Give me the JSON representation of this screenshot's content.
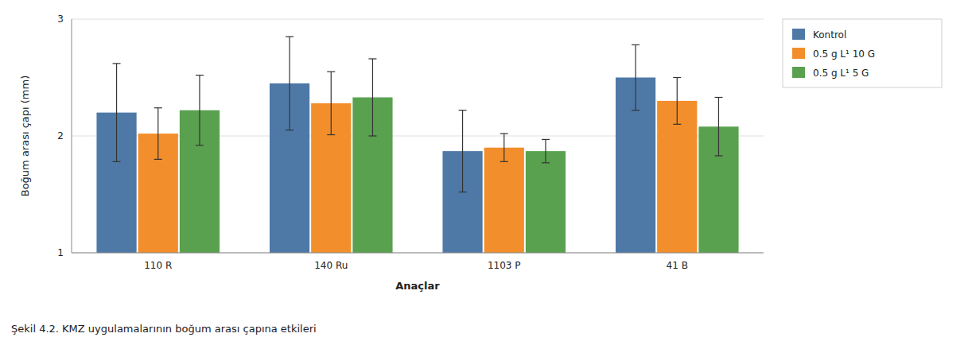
{
  "chart_data": {
    "type": "bar",
    "title": "Şekil 4.2. KMZ uygulamalarının boğum arası çapına etkileri",
    "xlabel": "Anaçlar",
    "ylabel": "Boğum arası çapı (mm)",
    "categories": [
      "110 R",
      "140 Ru",
      "1103 P",
      "41 B"
    ],
    "series": [
      {
        "name": "Kontrol",
        "color": "#4e79a7",
        "values": [
          2.2,
          2.45,
          1.87,
          2.5
        ],
        "errors": [
          0.42,
          0.4,
          0.35,
          0.28
        ]
      },
      {
        "name": "0.5 g L¹ 10 G",
        "color": "#f28e2b",
        "values": [
          2.02,
          2.28,
          1.9,
          2.3
        ],
        "errors": [
          0.22,
          0.27,
          0.12,
          0.2
        ]
      },
      {
        "name": "0.5 g L¹ 5 G",
        "color": "#59a14f",
        "values": [
          2.22,
          2.33,
          1.87,
          2.08
        ],
        "errors": [
          0.3,
          0.33,
          0.1,
          0.25
        ]
      }
    ],
    "ylim": [
      1,
      3
    ],
    "yticks": [
      1,
      2,
      3
    ],
    "grid": true,
    "legend": "upper right"
  }
}
